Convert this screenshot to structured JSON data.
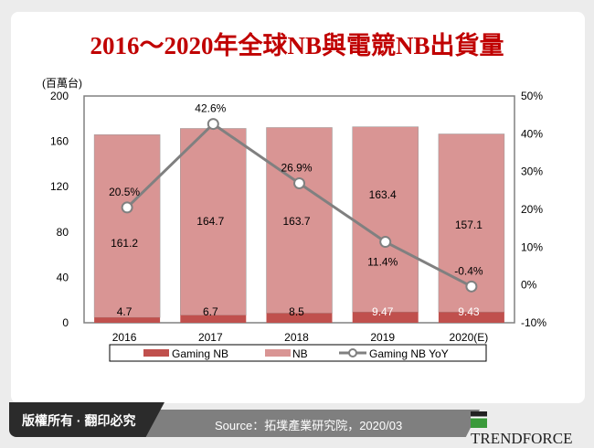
{
  "title": "2016～2020年全球NB與電競NB出貨量",
  "footer": {
    "copyright": "版權所有 · 翻印必究",
    "source": "Source：拓墣產業研究院，2020/03",
    "logo": "TRENDFORCE"
  },
  "chart_data": {
    "type": "bar",
    "stacked": true,
    "categories": [
      "2016",
      "2017",
      "2018",
      "2019",
      "2020(E)"
    ],
    "ylabel": "(百萬台)",
    "ylim": [
      0,
      200
    ],
    "yticks": [
      0,
      40,
      80,
      120,
      160,
      200
    ],
    "y2lim": [
      -10,
      50
    ],
    "y2ticks": [
      "-10%",
      "0%",
      "10%",
      "20%",
      "30%",
      "40%",
      "50%"
    ],
    "series": [
      {
        "name": "Gaming NB",
        "type": "bar",
        "color": "#c0504d",
        "values": [
          4.7,
          6.7,
          8.5,
          9.47,
          9.43
        ],
        "labels": [
          "4.7",
          "6.7",
          "8.5",
          "9.47",
          "9.43"
        ]
      },
      {
        "name": "NB",
        "type": "bar",
        "color": "#d99594",
        "values": [
          161.2,
          164.7,
          163.7,
          163.4,
          157.1
        ],
        "labels": [
          "161.2",
          "164.7",
          "163.7",
          "163.4",
          "157.1"
        ]
      },
      {
        "name": "Gaming NB YoY",
        "type": "line",
        "axis": "right",
        "color": "#808080",
        "values": [
          20.5,
          42.6,
          26.9,
          11.4,
          -0.4
        ],
        "labels": [
          "20.5%",
          "42.6%",
          "26.9%",
          "11.4%",
          "-0.4%"
        ]
      }
    ],
    "legend": "bottom"
  }
}
